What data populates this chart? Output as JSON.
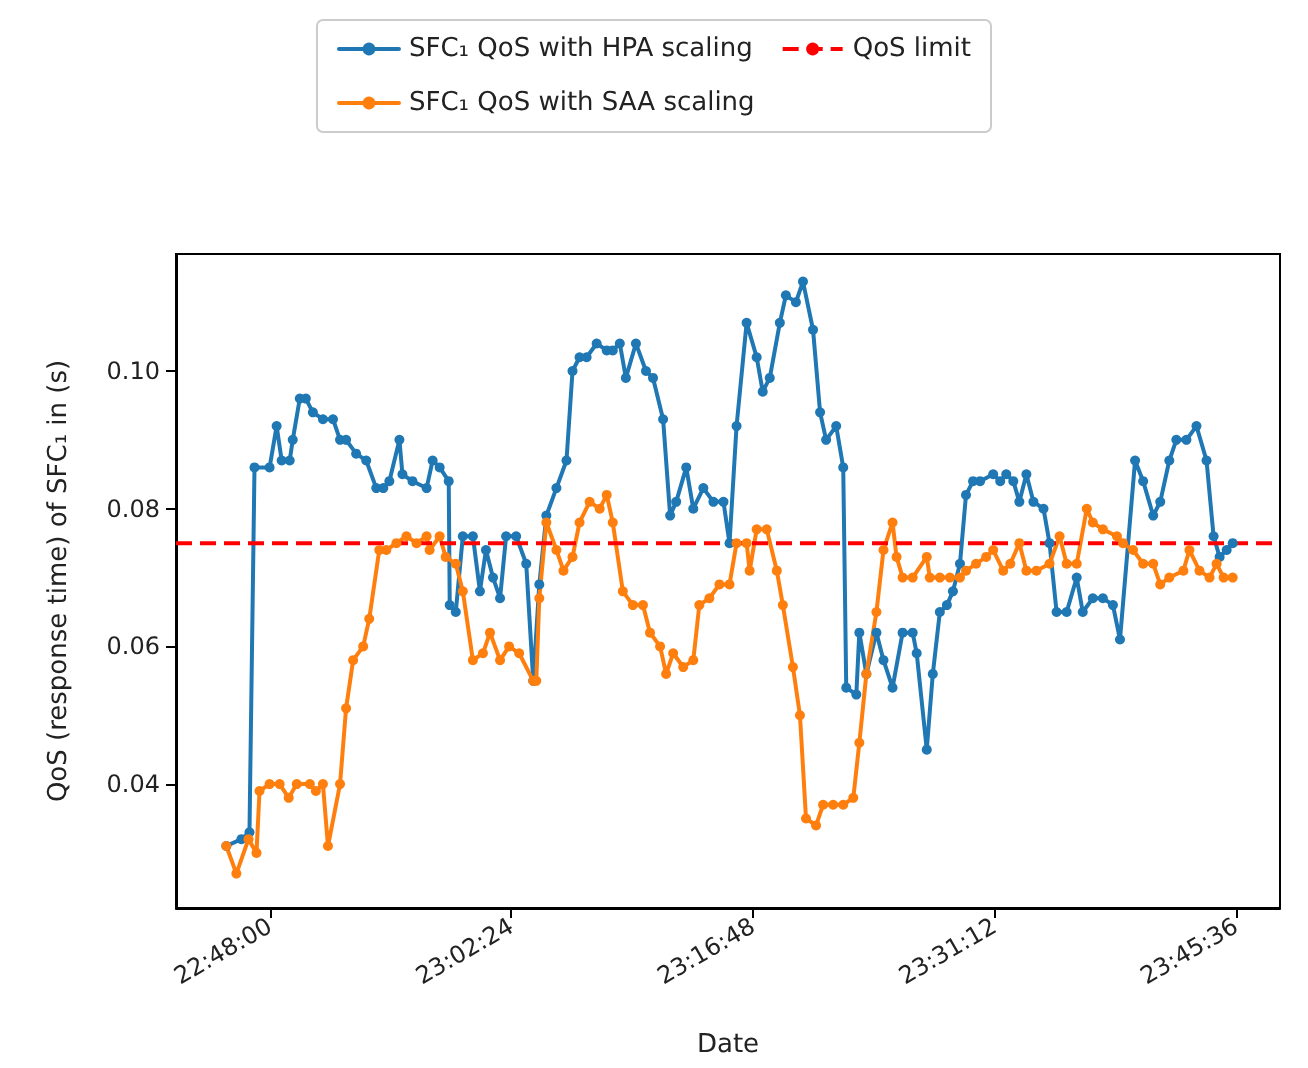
{
  "chart_data": {
    "type": "line",
    "xlabel": "Date",
    "ylabel": "QoS (response time) of SFC₁ in (s)",
    "xlim": [
      22.707,
      23.804
    ],
    "xticks": [
      {
        "value": 22.8,
        "label": "22:48:00"
      },
      {
        "value": 23.04,
        "label": "23:02:24"
      },
      {
        "value": 23.28,
        "label": "23:16:48"
      },
      {
        "value": 23.52,
        "label": "23:31:12"
      },
      {
        "value": 23.76,
        "label": "23:45:36"
      }
    ],
    "ylim": [
      0.022,
      0.117
    ],
    "yticks": [
      0.04,
      0.06,
      0.08,
      {
        "value": 0.1,
        "label": "0.10"
      }
    ],
    "legend": "top",
    "marker": "circle",
    "line_style": "solid",
    "grid": false,
    "ref_lines": [
      {
        "axis": "y",
        "value": 0.075,
        "label": "QoS limit",
        "color": "#ff0000",
        "line_style": "dashed"
      }
    ],
    "series": [
      {
        "name": "SFC₁ QoS with HPA scaling",
        "color": "#1f77b4",
        "x": [
          22.757,
          22.772,
          22.78,
          22.785,
          22.8,
          22.807,
          22.812,
          22.82,
          22.823,
          22.83,
          22.836,
          22.843,
          22.853,
          22.863,
          22.87,
          22.876,
          22.886,
          22.896,
          22.906,
          22.913,
          22.919,
          22.929,
          22.932,
          22.942,
          22.956,
          22.962,
          22.969,
          22.978,
          22.979,
          22.985,
          22.992,
          23.002,
          23.009,
          23.015,
          23.022,
          23.029,
          23.035,
          23.045,
          23.055,
          23.062,
          23.068,
          23.075,
          23.085,
          23.095,
          23.101,
          23.108,
          23.115,
          23.125,
          23.135,
          23.141,
          23.148,
          23.154,
          23.164,
          23.174,
          23.181,
          23.191,
          23.198,
          23.204,
          23.214,
          23.221,
          23.231,
          23.241,
          23.251,
          23.257,
          23.264,
          23.274,
          23.284,
          23.29,
          23.297,
          23.307,
          23.313,
          23.323,
          23.33,
          23.34,
          23.347,
          23.353,
          23.363,
          23.37,
          23.373,
          23.383,
          23.386,
          23.393,
          23.403,
          23.41,
          23.419,
          23.429,
          23.439,
          23.443,
          23.453,
          23.459,
          23.466,
          23.473,
          23.479,
          23.486,
          23.492,
          23.499,
          23.506,
          23.519,
          23.526,
          23.532,
          23.539,
          23.545,
          23.552,
          23.559,
          23.569,
          23.575,
          23.582,
          23.592,
          23.602,
          23.608,
          23.618,
          23.628,
          23.638,
          23.645,
          23.66,
          23.668,
          23.678,
          23.685,
          23.694,
          23.701,
          23.711,
          23.721,
          23.731,
          23.738,
          23.744,
          23.751,
          23.757
        ],
        "values": [
          0.031,
          0.032,
          0.033,
          0.086,
          0.086,
          0.092,
          0.087,
          0.087,
          0.09,
          0.096,
          0.096,
          0.094,
          0.093,
          0.093,
          0.09,
          0.09,
          0.088,
          0.087,
          0.083,
          0.083,
          0.084,
          0.09,
          0.085,
          0.084,
          0.083,
          0.087,
          0.086,
          0.084,
          0.066,
          0.065,
          0.076,
          0.076,
          0.068,
          0.074,
          0.07,
          0.067,
          0.076,
          0.076,
          0.072,
          0.055,
          0.069,
          0.079,
          0.083,
          0.087,
          0.1,
          0.102,
          0.102,
          0.104,
          0.103,
          0.103,
          0.104,
          0.099,
          0.104,
          0.1,
          0.099,
          0.093,
          0.079,
          0.081,
          0.086,
          0.08,
          0.083,
          0.081,
          0.081,
          0.075,
          0.092,
          0.107,
          0.102,
          0.097,
          0.099,
          0.107,
          0.111,
          0.11,
          0.113,
          0.106,
          0.094,
          0.09,
          0.092,
          0.086,
          0.054,
          0.053,
          0.062,
          0.056,
          0.062,
          0.058,
          0.054,
          0.062,
          0.062,
          0.059,
          0.045,
          0.056,
          0.065,
          0.066,
          0.068,
          0.072,
          0.082,
          0.084,
          0.084,
          0.085,
          0.084,
          0.085,
          0.084,
          0.081,
          0.085,
          0.081,
          0.08,
          0.075,
          0.065,
          0.065,
          0.07,
          0.065,
          0.067,
          0.067,
          0.066,
          0.061,
          0.087,
          0.084,
          0.079,
          0.081,
          0.087,
          0.09,
          0.09,
          0.092,
          0.087,
          0.076,
          0.073,
          0.074,
          0.075
        ]
      },
      {
        "name": "SFC₁ QoS with SAA scaling",
        "color": "#ff7f0e",
        "x": [
          22.757,
          22.767,
          22.779,
          22.787,
          22.79,
          22.8,
          22.81,
          22.819,
          22.827,
          22.84,
          22.846,
          22.853,
          22.858,
          22.87,
          22.876,
          22.883,
          22.893,
          22.899,
          22.909,
          22.916,
          22.926,
          22.936,
          22.946,
          22.956,
          22.959,
          22.969,
          22.975,
          22.985,
          22.992,
          23.002,
          23.012,
          23.019,
          23.029,
          23.038,
          23.048,
          23.062,
          23.065,
          23.068,
          23.075,
          23.085,
          23.092,
          23.101,
          23.108,
          23.118,
          23.128,
          23.135,
          23.141,
          23.151,
          23.161,
          23.171,
          23.178,
          23.188,
          23.194,
          23.201,
          23.211,
          23.221,
          23.227,
          23.237,
          23.247,
          23.257,
          23.264,
          23.274,
          23.277,
          23.284,
          23.294,
          23.304,
          23.31,
          23.32,
          23.327,
          23.333,
          23.343,
          23.35,
          23.36,
          23.37,
          23.38,
          23.386,
          23.393,
          23.403,
          23.41,
          23.419,
          23.423,
          23.429,
          23.439,
          23.453,
          23.456,
          23.466,
          23.476,
          23.486,
          23.492,
          23.502,
          23.512,
          23.519,
          23.529,
          23.536,
          23.545,
          23.552,
          23.562,
          23.575,
          23.585,
          23.592,
          23.602,
          23.612,
          23.618,
          23.628,
          23.642,
          23.648,
          23.658,
          23.668,
          23.678,
          23.685,
          23.694,
          23.708,
          23.714,
          23.724,
          23.734,
          23.741,
          23.748,
          23.757
        ],
        "values": [
          0.031,
          0.027,
          0.032,
          0.03,
          0.039,
          0.04,
          0.04,
          0.038,
          0.04,
          0.04,
          0.039,
          0.04,
          0.031,
          0.04,
          0.051,
          0.058,
          0.06,
          0.064,
          0.074,
          0.074,
          0.075,
          0.076,
          0.075,
          0.076,
          0.074,
          0.076,
          0.073,
          0.072,
          0.068,
          0.058,
          0.059,
          0.062,
          0.058,
          0.06,
          0.059,
          0.055,
          0.055,
          0.067,
          0.078,
          0.074,
          0.071,
          0.073,
          0.078,
          0.081,
          0.08,
          0.082,
          0.078,
          0.068,
          0.066,
          0.066,
          0.062,
          0.06,
          0.056,
          0.059,
          0.057,
          0.058,
          0.066,
          0.067,
          0.069,
          0.069,
          0.075,
          0.075,
          0.071,
          0.077,
          0.077,
          0.071,
          0.066,
          0.057,
          0.05,
          0.035,
          0.034,
          0.037,
          0.037,
          0.037,
          0.038,
          0.046,
          0.056,
          0.065,
          0.074,
          0.078,
          0.073,
          0.07,
          0.07,
          0.073,
          0.07,
          0.07,
          0.07,
          0.07,
          0.071,
          0.072,
          0.073,
          0.074,
          0.071,
          0.072,
          0.075,
          0.071,
          0.071,
          0.072,
          0.076,
          0.072,
          0.072,
          0.08,
          0.078,
          0.077,
          0.076,
          0.075,
          0.074,
          0.072,
          0.072,
          0.069,
          0.07,
          0.071,
          0.074,
          0.071,
          0.07,
          0.072,
          0.07,
          0.07
        ]
      }
    ]
  }
}
